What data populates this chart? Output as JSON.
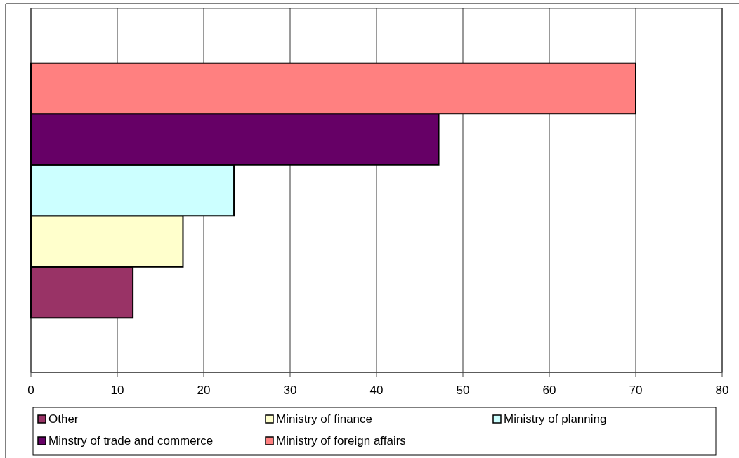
{
  "chart_data": {
    "type": "bar",
    "orientation": "horizontal",
    "categories": [
      null
    ],
    "series": [
      {
        "name": "Other",
        "color": "#993366",
        "values": [
          11.8
        ]
      },
      {
        "name": "Ministry of finance",
        "color": "#ffffcc",
        "values": [
          17.6
        ]
      },
      {
        "name": "Ministry of planning",
        "color": "#ccffff",
        "values": [
          23.5
        ]
      },
      {
        "name": "Minstry of trade and commerce",
        "color": "#660066",
        "values": [
          47.2
        ]
      },
      {
        "name": "Ministry of foreign affairs",
        "color": "#ff8080",
        "values": [
          70
        ]
      }
    ],
    "xlim": [
      0,
      80
    ],
    "xticks": [
      0,
      10,
      20,
      30,
      40,
      50,
      60,
      70,
      80
    ],
    "grid": "x",
    "legend": "bottom"
  }
}
